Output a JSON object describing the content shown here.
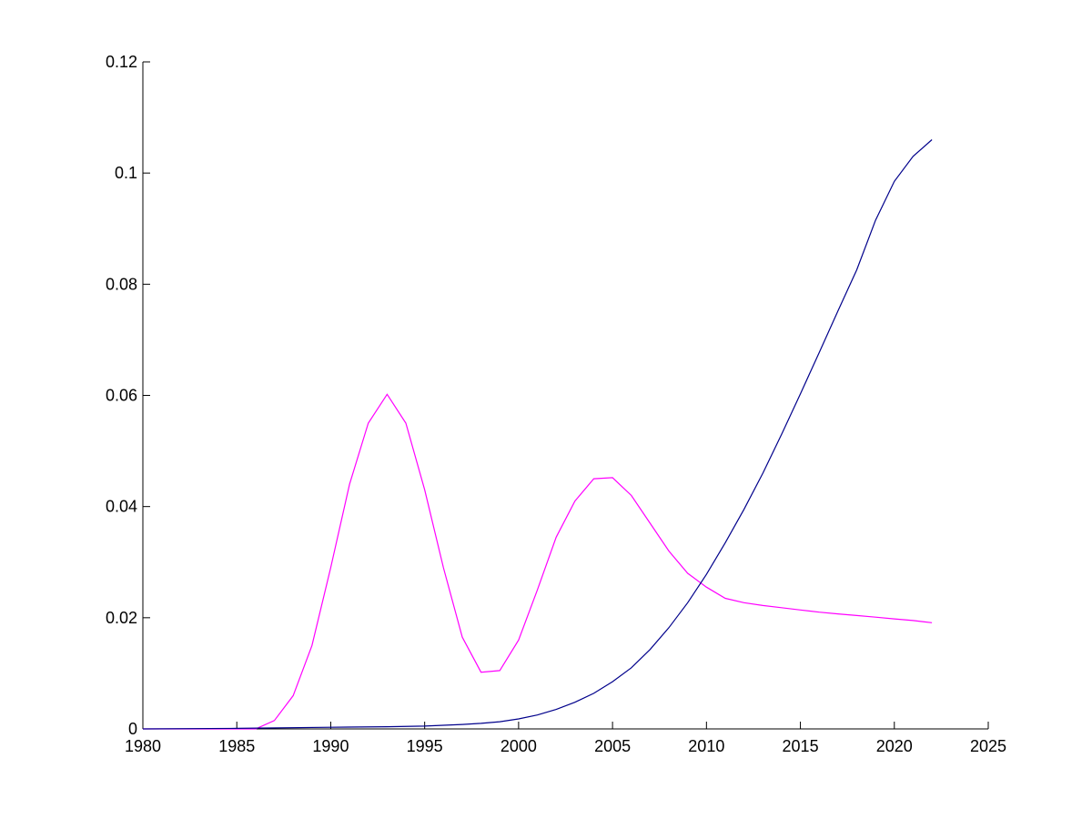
{
  "chart_data": {
    "type": "line",
    "title": "",
    "xlabel": "",
    "ylabel": "",
    "xlim": [
      1980,
      2025
    ],
    "ylim": [
      0,
      0.12
    ],
    "x_ticks": [
      1980,
      1985,
      1990,
      1995,
      2000,
      2005,
      2010,
      2015,
      2020,
      2025
    ],
    "x_tick_labels": [
      "1980",
      "1985",
      "1990",
      "1995",
      "2000",
      "2005",
      "2010",
      "2015",
      "2020",
      "2025"
    ],
    "y_ticks": [
      0,
      0.02,
      0.04,
      0.06,
      0.08,
      0.1,
      0.12
    ],
    "y_tick_labels": [
      "0",
      "0.02",
      "0.04",
      "0.06",
      "0.08",
      "0.1",
      "0.12"
    ],
    "grid": false,
    "legend": "none",
    "series": [
      {
        "color": "#ff00ff",
        "points": [
          [
            1980,
            0
          ],
          [
            1986,
            0
          ],
          [
            1987,
            0.0015
          ],
          [
            1988,
            0.006
          ],
          [
            1989,
            0.015
          ],
          [
            1990,
            0.029
          ],
          [
            1991,
            0.044
          ],
          [
            1992,
            0.055
          ],
          [
            1993,
            0.0602
          ],
          [
            1994,
            0.055
          ],
          [
            1995,
            0.043
          ],
          [
            1996,
            0.029
          ],
          [
            1997,
            0.0165
          ],
          [
            1998,
            0.0102
          ],
          [
            1999,
            0.0105
          ],
          [
            2000,
            0.016
          ],
          [
            2001,
            0.025
          ],
          [
            2002,
            0.0345
          ],
          [
            2003,
            0.041
          ],
          [
            2004,
            0.045
          ],
          [
            2005,
            0.0452
          ],
          [
            2006,
            0.042
          ],
          [
            2007,
            0.037
          ],
          [
            2008,
            0.032
          ],
          [
            2009,
            0.028
          ],
          [
            2010,
            0.0255
          ],
          [
            2011,
            0.0235
          ],
          [
            2012,
            0.0227
          ],
          [
            2013,
            0.0222
          ],
          [
            2014,
            0.0218
          ],
          [
            2015,
            0.0214
          ],
          [
            2016,
            0.021
          ],
          [
            2017,
            0.0207
          ],
          [
            2018,
            0.0204
          ],
          [
            2019,
            0.0201
          ],
          [
            2020,
            0.0198
          ],
          [
            2021,
            0.0195
          ],
          [
            2022,
            0.0191
          ]
        ]
      },
      {
        "color": "#00008b",
        "points": [
          [
            1980,
            0
          ],
          [
            1985,
            0.0001
          ],
          [
            1990,
            0.0003
          ],
          [
            1993,
            0.0004
          ],
          [
            1995,
            0.0005
          ],
          [
            1997,
            0.0008
          ],
          [
            1998,
            0.001
          ],
          [
            1999,
            0.0013
          ],
          [
            2000,
            0.0018
          ],
          [
            2001,
            0.0025
          ],
          [
            2002,
            0.0035
          ],
          [
            2003,
            0.0048
          ],
          [
            2004,
            0.0064
          ],
          [
            2005,
            0.0085
          ],
          [
            2006,
            0.011
          ],
          [
            2007,
            0.0143
          ],
          [
            2008,
            0.0182
          ],
          [
            2009,
            0.0227
          ],
          [
            2010,
            0.0278
          ],
          [
            2011,
            0.0335
          ],
          [
            2012,
            0.0395
          ],
          [
            2013,
            0.046
          ],
          [
            2014,
            0.053
          ],
          [
            2015,
            0.0603
          ],
          [
            2016,
            0.0677
          ],
          [
            2017,
            0.0752
          ],
          [
            2018,
            0.0826
          ],
          [
            2019,
            0.0915
          ],
          [
            2020,
            0.0985
          ],
          [
            2021,
            0.103
          ],
          [
            2022,
            0.106
          ]
        ]
      }
    ]
  }
}
